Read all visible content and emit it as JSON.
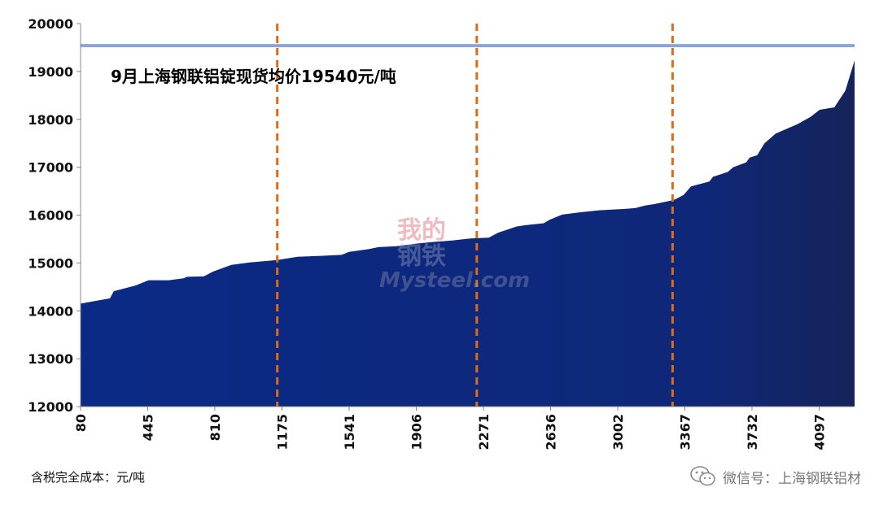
{
  "chart_data": {
    "type": "area",
    "annotation": "9月上海钢联铝锭现货均价19540元/吨",
    "reference_line": 19540,
    "vlines": [
      1150,
      2235,
      3300
    ],
    "ylim": [
      12000,
      20000
    ],
    "yticks": [
      12000,
      13000,
      14000,
      15000,
      16000,
      17000,
      18000,
      19000,
      20000
    ],
    "xlim": [
      80,
      4290
    ],
    "xticks": [
      80,
      445,
      810,
      1175,
      1541,
      1906,
      2271,
      2636,
      3002,
      3367,
      3732,
      4097
    ],
    "x": [
      80,
      240,
      260,
      380,
      450,
      560,
      640,
      660,
      750,
      800,
      900,
      1000,
      1150,
      1260,
      1400,
      1500,
      1540,
      1650,
      1700,
      1800,
      1900,
      2000,
      2100,
      2200,
      2300,
      2350,
      2450,
      2500,
      2600,
      2630,
      2700,
      2800,
      2900,
      3000,
      3050,
      3100,
      3150,
      3200,
      3300,
      3320,
      3360,
      3400,
      3500,
      3520,
      3600,
      3630,
      3700,
      3720,
      3760,
      3800,
      3860,
      3920,
      3980,
      4050,
      4100,
      4180,
      4240,
      4290
    ],
    "y": [
      14150,
      14260,
      14410,
      14530,
      14640,
      14640,
      14680,
      14710,
      14720,
      14820,
      14960,
      15010,
      15060,
      15130,
      15150,
      15170,
      15230,
      15290,
      15330,
      15350,
      15400,
      15440,
      15470,
      15510,
      15530,
      15630,
      15760,
      15790,
      15830,
      15900,
      16010,
      16060,
      16100,
      16120,
      16130,
      16150,
      16200,
      16230,
      16310,
      16340,
      16420,
      16600,
      16700,
      16800,
      16900,
      17000,
      17100,
      17200,
      17250,
      17500,
      17700,
      17800,
      17900,
      18050,
      18200,
      18250,
      18600,
      19230
    ],
    "area_color_start": "#0b2a86",
    "area_color_end": "#14245a",
    "reference_color": "#8aa4d8",
    "vline_color": "#e06b15"
  },
  "footer": {
    "unit_label": "含税完全成本：元/吨",
    "wechat_text": "微信号：上海钢联铝材"
  },
  "watermark": {
    "cn_line1": "我的",
    "cn_line2": "钢铁",
    "en": "Mysteel.com"
  }
}
